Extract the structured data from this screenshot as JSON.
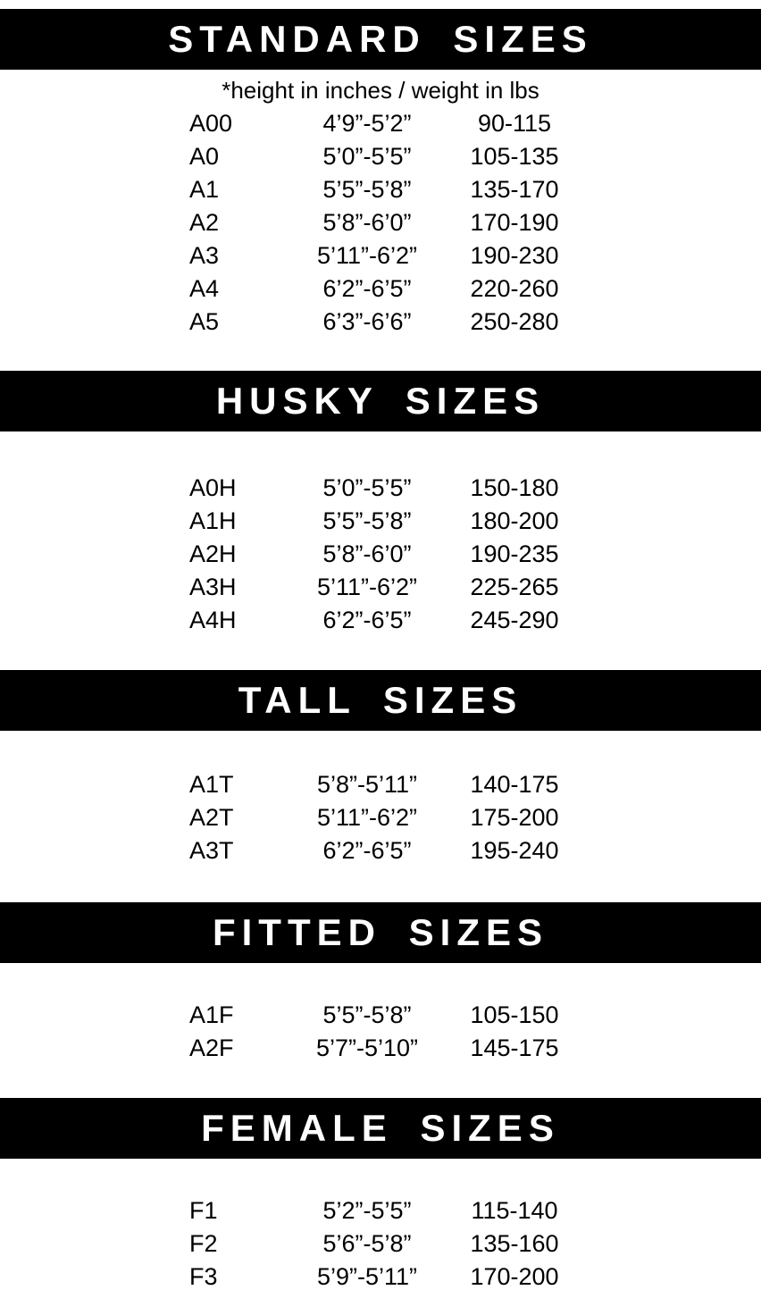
{
  "page": {
    "background_color": "#ffffff",
    "bar_color": "#000000",
    "bar_text_color": "#ffffff",
    "text_color": "#000000"
  },
  "columns": [
    "size_code",
    "height_range",
    "weight_range"
  ],
  "sections": [
    {
      "id": "standard-sizes",
      "title": "STANDARD SIZES",
      "note": "*height in inches / weight in lbs",
      "rows": [
        {
          "size": "A00",
          "height": "4’9”-5’2”",
          "weight": "90-115"
        },
        {
          "size": "A0",
          "height": "5’0”-5’5”",
          "weight": "105-135"
        },
        {
          "size": "A1",
          "height": "5’5”-5’8”",
          "weight": "135-170"
        },
        {
          "size": "A2",
          "height": "5’8”-6’0”",
          "weight": "170-190"
        },
        {
          "size": "A3",
          "height": "5’11”-6’2”",
          "weight": "190-230"
        },
        {
          "size": "A4",
          "height": "6’2”-6’5”",
          "weight": "220-260"
        },
        {
          "size": "A5",
          "height": "6’3”-6’6”",
          "weight": "250-280"
        }
      ]
    },
    {
      "id": "husky-sizes",
      "title": "HUSKY SIZES",
      "note": "",
      "rows": [
        {
          "size": "A0H",
          "height": "5’0”-5’5”",
          "weight": "150-180"
        },
        {
          "size": "A1H",
          "height": "5’5”-5’8”",
          "weight": "180-200"
        },
        {
          "size": "A2H",
          "height": "5’8”-6’0”",
          "weight": "190-235"
        },
        {
          "size": "A3H",
          "height": "5’11”-6’2”",
          "weight": "225-265"
        },
        {
          "size": "A4H",
          "height": "6’2”-6’5”",
          "weight": "245-290"
        }
      ]
    },
    {
      "id": "tall-sizes",
      "title": "TALL SIZES",
      "note": "",
      "rows": [
        {
          "size": "A1T",
          "height": "5’8”-5’11”",
          "weight": "140-175"
        },
        {
          "size": "A2T",
          "height": "5’11”-6’2”",
          "weight": "175-200"
        },
        {
          "size": "A3T",
          "height": "6’2”-6’5”",
          "weight": "195-240"
        }
      ]
    },
    {
      "id": "fitted-sizes",
      "title": "FITTED SIZES",
      "note": "",
      "rows": [
        {
          "size": "A1F",
          "height": "5’5”-5’8”",
          "weight": "105-150"
        },
        {
          "size": "A2F",
          "height": "5’7”-5’10”",
          "weight": "145-175"
        }
      ]
    },
    {
      "id": "female-sizes",
      "title": "FEMALE SIZES",
      "note": "",
      "rows": [
        {
          "size": "F1",
          "height": "5’2”-5’5”",
          "weight": "115-140"
        },
        {
          "size": "F2",
          "height": "5’6”-5’8”",
          "weight": "135-160"
        },
        {
          "size": "F3",
          "height": "5’9”-5’11”",
          "weight": "170-200"
        }
      ]
    }
  ]
}
